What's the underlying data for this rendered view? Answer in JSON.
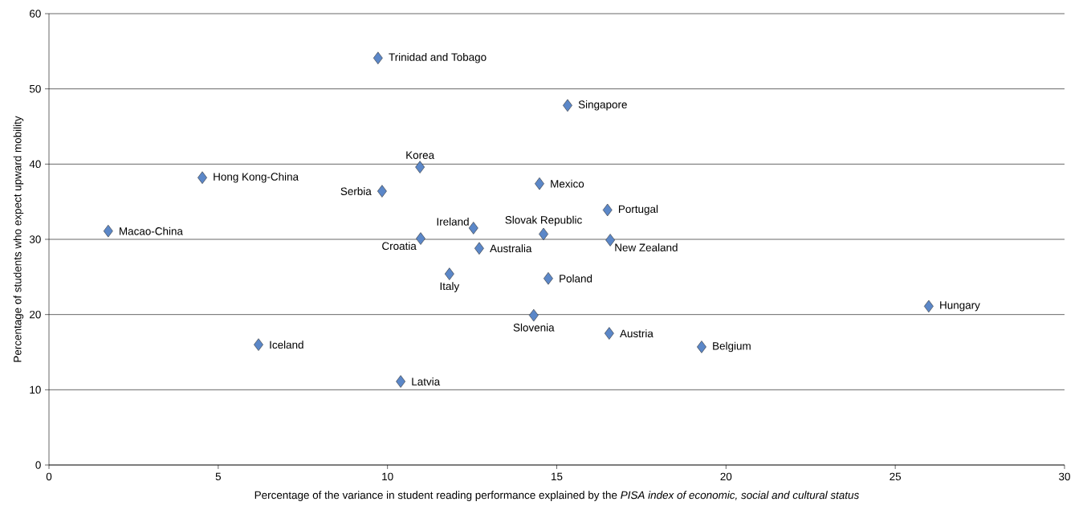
{
  "chart_data": {
    "type": "scatter",
    "xlabel": "Percentage of the variance in student reading performance explained by the *PISA index of economic, social and cultural status*",
    "ylabel": "Percentage of students who expect upward mobility",
    "series": [
      {
        "color": "#5b87c8",
        "x": [
          9.72,
          15.32,
          10.96,
          4.53,
          9.84,
          14.49,
          16.5,
          1.75,
          12.54,
          14.61,
          10.98,
          12.71,
          16.58,
          11.83,
          14.75,
          25.99,
          14.32,
          16.55,
          19.28,
          6.19,
          10.39
        ],
        "values": [
          54.1,
          47.8,
          39.6,
          38.2,
          36.4,
          37.4,
          33.9,
          31.1,
          31.5,
          30.7,
          30.1,
          28.8,
          29.9,
          25.4,
          24.8,
          21.1,
          19.9,
          17.5,
          15.7,
          16.0,
          11.1
        ]
      }
    ],
    "annotations": [
      {
        "text": "Trinidad and Tobago",
        "x": 9.72,
        "y": 54.1
      },
      {
        "text": "Singapore",
        "x": 15.32,
        "y": 47.8
      },
      {
        "text": "Korea",
        "x": 10.96,
        "y": 39.6
      },
      {
        "text": "Hong Kong-China",
        "x": 4.53,
        "y": 38.2
      },
      {
        "text": "Serbia",
        "x": 9.84,
        "y": 36.4
      },
      {
        "text": "Mexico",
        "x": 14.49,
        "y": 37.4
      },
      {
        "text": "Portugal",
        "x": 16.5,
        "y": 33.9
      },
      {
        "text": "Macao-China",
        "x": 1.75,
        "y": 31.1
      },
      {
        "text": "Ireland",
        "x": 12.54,
        "y": 31.5
      },
      {
        "text": "Slovak Republic",
        "x": 14.61,
        "y": 30.7
      },
      {
        "text": "Croatia",
        "x": 10.98,
        "y": 30.1
      },
      {
        "text": "Australia",
        "x": 12.71,
        "y": 28.8
      },
      {
        "text": "New Zealand",
        "x": 16.58,
        "y": 29.9
      },
      {
        "text": "Italy",
        "x": 11.83,
        "y": 25.4
      },
      {
        "text": "Poland",
        "x": 14.75,
        "y": 24.8
      },
      {
        "text": "Hungary",
        "x": 25.99,
        "y": 21.1
      },
      {
        "text": "Slovenia",
        "x": 14.32,
        "y": 19.9
      },
      {
        "text": "Austria",
        "x": 16.55,
        "y": 17.5
      },
      {
        "text": "Belgium",
        "x": 19.28,
        "y": 15.7
      },
      {
        "text": "Iceland",
        "x": 6.19,
        "y": 16.0
      },
      {
        "text": "Latvia",
        "x": 10.39,
        "y": 11.1
      }
    ],
    "xlim": [
      0,
      30
    ],
    "ylim": [
      0,
      60
    ],
    "xticks": [
      0,
      5,
      10,
      15,
      20,
      25,
      30
    ],
    "yticks": [
      0,
      10,
      20,
      30,
      40,
      50,
      60
    ],
    "grid": "y",
    "marker": "diamond"
  }
}
